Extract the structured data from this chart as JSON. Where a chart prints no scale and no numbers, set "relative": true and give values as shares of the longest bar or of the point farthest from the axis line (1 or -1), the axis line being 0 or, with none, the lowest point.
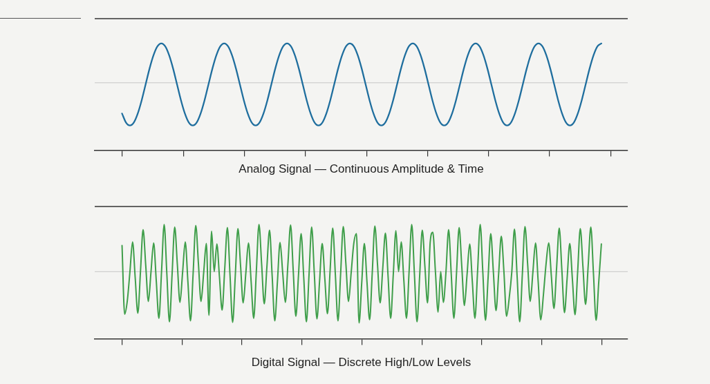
{
  "chart_data": [
    {
      "type": "line",
      "xlabel": "Analog Signal — Continuous Amplitude & Time",
      "relative": true,
      "color": "#1f6e9e",
      "ref_lines": [
        {
          "axis": "y",
          "value": 0,
          "color": "#c6c6c6"
        }
      ],
      "categories": [
        null,
        null,
        null,
        null,
        null,
        null,
        null,
        null,
        null,
        null,
        null,
        null,
        null,
        null,
        null,
        null,
        null,
        null,
        null,
        null,
        null,
        null,
        null,
        null,
        null,
        null,
        null,
        null,
        null,
        null,
        null,
        null,
        null,
        null,
        null,
        null,
        null,
        null,
        null,
        null,
        null,
        null,
        null,
        null,
        null,
        null,
        null,
        null,
        null,
        null,
        null,
        null,
        null,
        null,
        null,
        null,
        null,
        null,
        null,
        null,
        null,
        null,
        null,
        null,
        null,
        null,
        null,
        null,
        null,
        null,
        null,
        null,
        null,
        null,
        null,
        null,
        null,
        null,
        null,
        null,
        null,
        null,
        null,
        null,
        null,
        null,
        null,
        null,
        null,
        null,
        null,
        null,
        null,
        null,
        null,
        null,
        null,
        null,
        null,
        null,
        null,
        null,
        null,
        null,
        null,
        null,
        null,
        null,
        null,
        null,
        null,
        null,
        null,
        null,
        null,
        null,
        null,
        null,
        null,
        null,
        null,
        null,
        null
      ],
      "values": [
        -0.72,
        -0.93,
        -1,
        -0.93,
        -0.72,
        -0.41,
        -0.04,
        0.33,
        0.64,
        0.85,
        0.92,
        0.85,
        0.64,
        0.33,
        -0.04,
        -0.41,
        -0.72,
        -0.93,
        -1,
        -0.93,
        -0.72,
        -0.41,
        -0.04,
        0.33,
        0.64,
        0.85,
        0.92,
        0.85,
        0.64,
        0.33,
        -0.04,
        -0.41,
        -0.72,
        -0.93,
        -1,
        -0.93,
        -0.72,
        -0.41,
        -0.04,
        0.33,
        0.64,
        0.85,
        0.92,
        0.85,
        0.64,
        0.33,
        -0.04,
        -0.41,
        -0.72,
        -0.93,
        -1,
        -0.93,
        -0.72,
        -0.41,
        -0.04,
        0.33,
        0.64,
        0.85,
        0.92,
        0.85,
        0.64,
        0.33,
        -0.04,
        -0.41,
        -0.72,
        -0.93,
        -1,
        -0.93,
        -0.72,
        -0.41,
        -0.04,
        0.33,
        0.64,
        0.85,
        0.92,
        0.85,
        0.64,
        0.33,
        -0.04,
        -0.41,
        -0.72,
        -0.93,
        -1,
        -0.93,
        -0.72,
        -0.41,
        -0.04,
        0.33,
        0.64,
        0.85,
        0.92,
        0.85,
        0.64,
        0.33,
        -0.04,
        -0.41,
        -0.72,
        -0.93,
        -1,
        -0.93,
        -0.72,
        -0.41,
        -0.04,
        0.33,
        0.64,
        0.85,
        0.92,
        0.85,
        0.64,
        0.33,
        -0.04,
        -0.41,
        -0.72,
        -0.93,
        -1,
        -0.93,
        -0.72,
        -0.41,
        -0.04,
        0.33,
        0.64,
        0.85,
        0.92
      ]
    },
    {
      "type": "line",
      "xlabel": "Digital Signal — Discrete High/Low Levels",
      "relative": true,
      "color": "#3f9e4a",
      "ref_lines": [
        {
          "axis": "y",
          "value": 0,
          "color": "#c6c6c6"
        }
      ],
      "categories": [
        null,
        null,
        null,
        null,
        null,
        null,
        null,
        null,
        null,
        null,
        null,
        null,
        null,
        null,
        null,
        null,
        null,
        null,
        null,
        null,
        null,
        null,
        null,
        null,
        null,
        null,
        null,
        null,
        null,
        null,
        null,
        null,
        null,
        null,
        null,
        null,
        null,
        null,
        null,
        null,
        null,
        null,
        null,
        null,
        null,
        null,
        null,
        null,
        null,
        null,
        null,
        null,
        null,
        null,
        null,
        null,
        null,
        null,
        null,
        null,
        null,
        null,
        null,
        null,
        null,
        null,
        null,
        null,
        null,
        null,
        null,
        null,
        null,
        null,
        null,
        null,
        null,
        null,
        null,
        null,
        null,
        null,
        null,
        null,
        null,
        null,
        null,
        null,
        null,
        null,
        null,
        null,
        null,
        null,
        null,
        null,
        null,
        null,
        null,
        null,
        null,
        null,
        null,
        null,
        null,
        null,
        null,
        null,
        null,
        null,
        null,
        null,
        null,
        null,
        null,
        null,
        null,
        null,
        null,
        null,
        null,
        null,
        null,
        null,
        null,
        null,
        null,
        null,
        null,
        null,
        null,
        null,
        null,
        null,
        null,
        null,
        null,
        null,
        null,
        null,
        null,
        null,
        null,
        null,
        null,
        null,
        null,
        null,
        null,
        null,
        null,
        null,
        null,
        null,
        null,
        null,
        null,
        null,
        null,
        null,
        null,
        null,
        null,
        null,
        null,
        null,
        null,
        null,
        null,
        null,
        null,
        null,
        null,
        null,
        null,
        null,
        null,
        null,
        null,
        null,
        null,
        null,
        null
      ],
      "values": [
        0.51,
        -0.83,
        -0.57,
        0,
        0.58,
        -0.12,
        -0.81,
        0,
        0.82,
        0.12,
        -0.58,
        0,
        0.56,
        -0.18,
        -0.91,
        0,
        0.92,
        -0.03,
        -0.98,
        -0.06,
        0.87,
        0.14,
        -0.6,
        -0.01,
        0.58,
        -0.19,
        -0.96,
        -0.03,
        0.9,
        0.16,
        -0.58,
        -0.02,
        0.55,
        -0.85,
        0.79,
        0,
        0.54,
        -0.11,
        -0.75,
        0.06,
        0.86,
        -0.07,
        -0.99,
        -0.08,
        0.84,
        0.12,
        -0.61,
        -0.03,
        0.56,
        -0.18,
        -0.91,
        0.01,
        0.92,
        0.15,
        -0.63,
        0.09,
        0.81,
        -0.08,
        -0.96,
        -0.2,
        0.57,
        -0.02,
        -0.6,
        0.16,
        0.91,
        0.02,
        -0.87,
        -0.07,
        0.74,
        -0.12,
        -0.98,
        -0.06,
        0.87,
        -0.03,
        -0.92,
        -0.19,
        0.55,
        -0.14,
        -0.82,
        0.02,
        0.85,
        -0.06,
        -0.96,
        -0.04,
        0.88,
        0.15,
        -0.58,
        -0.02,
        0.55,
        0.74,
        -1,
        -0.23,
        0.55,
        -0.2,
        -0.94,
        -0.03,
        0.89,
        0.14,
        -0.61,
        0.07,
        0.75,
        -0.08,
        -0.91,
        -0.05,
        0.8,
        0,
        0.58,
        -0.17,
        -0.91,
        0.01,
        0.92,
        -0.03,
        -0.98,
        -0.09,
        0.81,
        0.1,
        -0.61,
        0.57,
        0.77,
        -0.01,
        -0.79,
        0,
        -0.6,
        0,
        0.82,
        -0.05,
        -0.91,
        -0.03,
        0.86,
        0.1,
        -0.66,
        -0.06,
        0.54,
        -0.19,
        -0.91,
        0.01,
        0.92,
        -0.02,
        -0.95,
        -0.11,
        0.74,
        -0.01,
        -0.76,
        -0.04,
        0.69,
        0,
        -0.87,
        -0.52,
        0,
        0.83,
        -0.08,
        -0.98,
        -0.05,
        0.88,
        0.15,
        -0.58,
        -0.01,
        0.56,
        -0.19,
        -0.94,
        -0.45,
        0.15,
        0.56,
        -0.08,
        -0.72,
        0.07,
        0.85,
        0.03,
        -0.8,
        -0.13,
        0.55,
        -0.15,
        -0.84,
        0,
        0.84,
        0.1,
        -0.64,
        0.12,
        0.87,
        -0.04,
        -0.95,
        -0.21,
        0.54
      ]
    }
  ]
}
